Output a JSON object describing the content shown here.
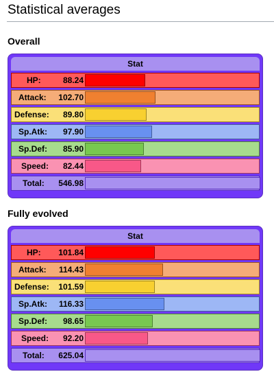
{
  "page_title": "Statistical averages",
  "sections": [
    {
      "heading": "Overall",
      "header": "Stat",
      "rows": [
        {
          "label": "HP:",
          "value": "88.24"
        },
        {
          "label": "Attack:",
          "value": "102.70"
        },
        {
          "label": "Defense:",
          "value": "89.80"
        },
        {
          "label": "Sp.Atk:",
          "value": "97.90"
        },
        {
          "label": "Sp.Def:",
          "value": "85.90"
        },
        {
          "label": "Speed:",
          "value": "82.44"
        },
        {
          "label": "Total:",
          "value": "546.98"
        }
      ]
    },
    {
      "heading": "Fully evolved",
      "header": "Stat",
      "rows": [
        {
          "label": "HP:",
          "value": "101.84"
        },
        {
          "label": "Attack:",
          "value": "114.43"
        },
        {
          "label": "Defense:",
          "value": "101.59"
        },
        {
          "label": "Sp.Atk:",
          "value": "116.33"
        },
        {
          "label": "Sp.Def:",
          "value": "98.65"
        },
        {
          "label": "Speed:",
          "value": "92.20"
        },
        {
          "label": "Total:",
          "value": "625.04"
        }
      ]
    }
  ],
  "colors": {
    "hp": "#FF0000",
    "attack": "#F08030",
    "defense": "#F8D030",
    "sp_atk": "#6890F0",
    "sp_def": "#78C850",
    "speed": "#F85888",
    "box": "#7038F8",
    "header": "#A890F0"
  }
}
